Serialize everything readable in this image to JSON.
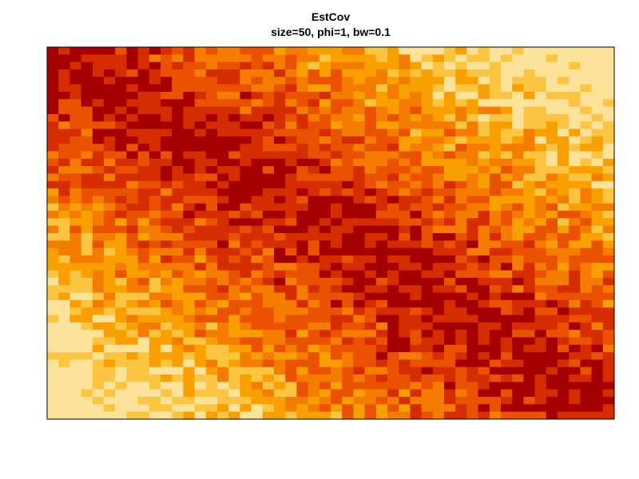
{
  "chart_data": {
    "type": "heatmap",
    "title": "EstCov",
    "subtitle": "size=50, phi=1, bw=0.1",
    "xlabel": "",
    "ylabel": "",
    "axes_shown": false,
    "grid": false,
    "legend": "none",
    "matrix_size": 50,
    "colors": [
      "#a50000",
      "#d62d00",
      "#ea5200",
      "#f47c00",
      "#f9a000",
      "#fbc441",
      "#fde39a"
    ],
    "value_range": [
      0,
      1
    ]
  }
}
